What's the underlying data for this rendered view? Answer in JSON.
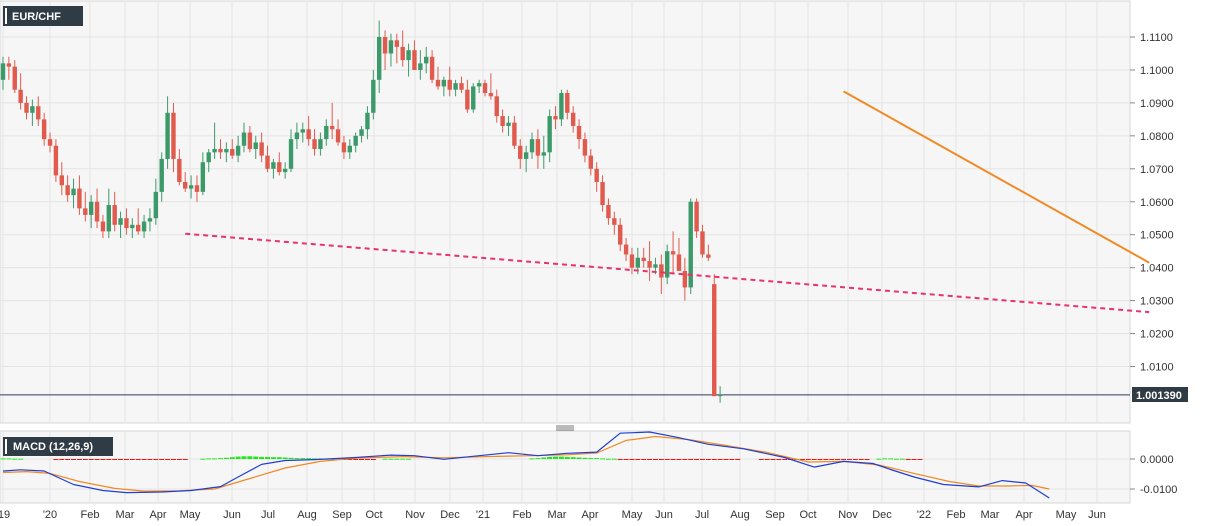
{
  "title": "EUR/CHF",
  "indicator_label": "MACD (12,26,9)",
  "last_price_label": "1.001390",
  "colors": {
    "up": "#3c9a6a",
    "down": "#e05a4e",
    "hist_pos": "#22e61e",
    "hist_neg": "#f01414",
    "macd_line": "#1f3fd4",
    "signal_line": "#f08a24",
    "trendline_solid": "#f08a24",
    "trendline_dashed": "#e8336b",
    "label_bg": "#2f3b45"
  },
  "chart_data": [
    {
      "type": "candlestick",
      "title": "EUR/CHF",
      "timeframe": "weekly",
      "x_ticks": [
        "'19",
        "'20",
        "Feb",
        "Mar",
        "Apr",
        "May",
        "Jun",
        "Jul",
        "Aug",
        "Sep",
        "Oct",
        "Nov",
        "Dec",
        "'21",
        "Feb",
        "Mar",
        "Apr",
        "May",
        "Jun",
        "Jul",
        "Aug",
        "Sep",
        "Oct",
        "Nov",
        "Dec",
        "'22",
        "Feb",
        "Mar",
        "Apr",
        "May",
        "Jun"
      ],
      "y_ticks": [
        "1.1100",
        "1.1000",
        "1.0900",
        "1.0800",
        "1.0700",
        "1.0600",
        "1.0500",
        "1.0400",
        "1.0300",
        "1.0200",
        "1.0100"
      ],
      "ylim": [
        0.9975,
        1.1215
      ],
      "last_price": 1.00139,
      "candles": [
        [
          1.097,
          1.104,
          1.094,
          1.102
        ],
        [
          1.102,
          1.104,
          1.097,
          1.101
        ],
        [
          1.101,
          1.103,
          1.093,
          1.094
        ],
        [
          1.094,
          1.099,
          1.088,
          1.09
        ],
        [
          1.09,
          1.092,
          1.085,
          1.087
        ],
        [
          1.087,
          1.091,
          1.083,
          1.089
        ],
        [
          1.089,
          1.092,
          1.083,
          1.085
        ],
        [
          1.085,
          1.087,
          1.077,
          1.079
        ],
        [
          1.079,
          1.081,
          1.075,
          1.077
        ],
        [
          1.077,
          1.079,
          1.066,
          1.068
        ],
        [
          1.068,
          1.072,
          1.062,
          1.065
        ],
        [
          1.065,
          1.068,
          1.06,
          1.062
        ],
        [
          1.062,
          1.067,
          1.058,
          1.064
        ],
        [
          1.064,
          1.068,
          1.056,
          1.058
        ],
        [
          1.058,
          1.063,
          1.054,
          1.056
        ],
        [
          1.056,
          1.062,
          1.052,
          1.06
        ],
        [
          1.06,
          1.064,
          1.052,
          1.054
        ],
        [
          1.054,
          1.056,
          1.049,
          1.051
        ],
        [
          1.051,
          1.064,
          1.049,
          1.059
        ],
        [
          1.059,
          1.063,
          1.051,
          1.053
        ],
        [
          1.053,
          1.057,
          1.049,
          1.055
        ],
        [
          1.055,
          1.058,
          1.05,
          1.052
        ],
        [
          1.052,
          1.055,
          1.049,
          1.053
        ],
        [
          1.053,
          1.058,
          1.05,
          1.051
        ],
        [
          1.051,
          1.056,
          1.049,
          1.054
        ],
        [
          1.054,
          1.058,
          1.051,
          1.055
        ],
        [
          1.055,
          1.067,
          1.053,
          1.063
        ],
        [
          1.063,
          1.075,
          1.06,
          1.073
        ],
        [
          1.073,
          1.092,
          1.07,
          1.087
        ],
        [
          1.087,
          1.09,
          1.069,
          1.073
        ],
        [
          1.073,
          1.076,
          1.065,
          1.066
        ],
        [
          1.066,
          1.069,
          1.063,
          1.064
        ],
        [
          1.064,
          1.068,
          1.061,
          1.065
        ],
        [
          1.065,
          1.068,
          1.06,
          1.063
        ],
        [
          1.063,
          1.075,
          1.062,
          1.072
        ],
        [
          1.072,
          1.076,
          1.069,
          1.075
        ],
        [
          1.075,
          1.084,
          1.073,
          1.076
        ],
        [
          1.076,
          1.079,
          1.073,
          1.075
        ],
        [
          1.075,
          1.078,
          1.072,
          1.076
        ],
        [
          1.076,
          1.079,
          1.073,
          1.074
        ],
        [
          1.074,
          1.08,
          1.072,
          1.077
        ],
        [
          1.077,
          1.084,
          1.075,
          1.081
        ],
        [
          1.081,
          1.083,
          1.075,
          1.076
        ],
        [
          1.076,
          1.08,
          1.073,
          1.078
        ],
        [
          1.078,
          1.081,
          1.072,
          1.074
        ],
        [
          1.074,
          1.077,
          1.069,
          1.07
        ],
        [
          1.07,
          1.073,
          1.067,
          1.072
        ],
        [
          1.072,
          1.075,
          1.068,
          1.069
        ],
        [
          1.069,
          1.072,
          1.067,
          1.07
        ],
        [
          1.07,
          1.082,
          1.069,
          1.079
        ],
        [
          1.079,
          1.084,
          1.076,
          1.081
        ],
        [
          1.081,
          1.084,
          1.078,
          1.082
        ],
        [
          1.082,
          1.086,
          1.077,
          1.079
        ],
        [
          1.079,
          1.082,
          1.074,
          1.076
        ],
        [
          1.076,
          1.081,
          1.074,
          1.079
        ],
        [
          1.079,
          1.085,
          1.077,
          1.083
        ],
        [
          1.083,
          1.09,
          1.079,
          1.082
        ],
        [
          1.082,
          1.085,
          1.077,
          1.078
        ],
        [
          1.078,
          1.08,
          1.073,
          1.075
        ],
        [
          1.075,
          1.079,
          1.073,
          1.077
        ],
        [
          1.077,
          1.081,
          1.075,
          1.08
        ],
        [
          1.08,
          1.083,
          1.078,
          1.082
        ],
        [
          1.082,
          1.089,
          1.079,
          1.087
        ],
        [
          1.087,
          1.1,
          1.085,
          1.097
        ],
        [
          1.097,
          1.115,
          1.093,
          1.11
        ],
        [
          1.11,
          1.112,
          1.1,
          1.105
        ],
        [
          1.105,
          1.111,
          1.101,
          1.109
        ],
        [
          1.109,
          1.111,
          1.102,
          1.107
        ],
        [
          1.107,
          1.112,
          1.101,
          1.103
        ],
        [
          1.103,
          1.108,
          1.098,
          1.106
        ],
        [
          1.106,
          1.109,
          1.1,
          1.1
        ],
        [
          1.1,
          1.106,
          1.097,
          1.102
        ],
        [
          1.102,
          1.107,
          1.099,
          1.104
        ],
        [
          1.104,
          1.106,
          1.096,
          1.097
        ],
        [
          1.097,
          1.101,
          1.094,
          1.095
        ],
        [
          1.095,
          1.098,
          1.092,
          1.097
        ],
        [
          1.097,
          1.101,
          1.092,
          1.094
        ],
        [
          1.094,
          1.097,
          1.092,
          1.096
        ],
        [
          1.096,
          1.098,
          1.093,
          1.094
        ],
        [
          1.094,
          1.097,
          1.087,
          1.088
        ],
        [
          1.088,
          1.096,
          1.087,
          1.095
        ],
        [
          1.095,
          1.097,
          1.093,
          1.096
        ],
        [
          1.096,
          1.097,
          1.092,
          1.093
        ],
        [
          1.093,
          1.099,
          1.091,
          1.092
        ],
        [
          1.092,
          1.094,
          1.084,
          1.086
        ],
        [
          1.086,
          1.088,
          1.081,
          1.083
        ],
        [
          1.083,
          1.086,
          1.08,
          1.084
        ],
        [
          1.084,
          1.086,
          1.076,
          1.077
        ],
        [
          1.077,
          1.079,
          1.07,
          1.073
        ],
        [
          1.073,
          1.077,
          1.069,
          1.075
        ],
        [
          1.075,
          1.081,
          1.073,
          1.079
        ],
        [
          1.079,
          1.082,
          1.07,
          1.074
        ],
        [
          1.074,
          1.08,
          1.07,
          1.075
        ],
        [
          1.075,
          1.088,
          1.072,
          1.086
        ],
        [
          1.086,
          1.089,
          1.082,
          1.085
        ],
        [
          1.085,
          1.094,
          1.083,
          1.093
        ],
        [
          1.093,
          1.094,
          1.085,
          1.087
        ],
        [
          1.087,
          1.089,
          1.081,
          1.083
        ],
        [
          1.083,
          1.085,
          1.076,
          1.079
        ],
        [
          1.079,
          1.081,
          1.072,
          1.074
        ],
        [
          1.074,
          1.076,
          1.068,
          1.07
        ],
        [
          1.07,
          1.072,
          1.063,
          1.066
        ],
        [
          1.066,
          1.068,
          1.057,
          1.059
        ],
        [
          1.059,
          1.061,
          1.053,
          1.055
        ],
        [
          1.055,
          1.057,
          1.05,
          1.053
        ],
        [
          1.053,
          1.055,
          1.045,
          1.047
        ],
        [
          1.047,
          1.049,
          1.042,
          1.044
        ],
        [
          1.044,
          1.046,
          1.038,
          1.04
        ],
        [
          1.04,
          1.046,
          1.038,
          1.043
        ],
        [
          1.043,
          1.046,
          1.04,
          1.042
        ],
        [
          1.042,
          1.048,
          1.036,
          1.04
        ],
        [
          1.04,
          1.043,
          1.038,
          1.041
        ],
        [
          1.041,
          1.044,
          1.032,
          1.037
        ],
        [
          1.037,
          1.047,
          1.035,
          1.045
        ],
        [
          1.045,
          1.051,
          1.038,
          1.044
        ],
        [
          1.044,
          1.049,
          1.04,
          1.039
        ],
        [
          1.039,
          1.043,
          1.03,
          1.034
        ],
        [
          1.034,
          1.061,
          1.032,
          1.06
        ],
        [
          1.06,
          1.061,
          1.049,
          1.051
        ],
        [
          1.051,
          1.053,
          1.043,
          1.044
        ],
        [
          1.044,
          1.047,
          1.042,
          1.043
        ],
        [
          1.035,
          1.038,
          1.001,
          1.001
        ],
        [
          1.001,
          1.004,
          0.999,
          1.0014
        ]
      ],
      "trendlines": [
        {
          "style": "solid",
          "from": [
            143,
            1.0935
          ],
          "to": [
            195,
            1.0415
          ]
        },
        {
          "style": "dashed",
          "from": [
            31,
            1.0503
          ],
          "to": [
            195,
            1.0265
          ]
        }
      ]
    },
    {
      "type": "macd",
      "title": "MACD (12,26,9)",
      "y_ticks": [
        "0.0000",
        "-0.0100"
      ],
      "ylim": [
        -0.0132,
        0.0092
      ],
      "macd_points": [
        [
          0,
          -0.004
        ],
        [
          3,
          -0.0036
        ],
        [
          7,
          -0.004
        ],
        [
          12,
          -0.0085
        ],
        [
          17,
          -0.0105
        ],
        [
          21,
          -0.0112
        ],
        [
          27,
          -0.011
        ],
        [
          32,
          -0.0105
        ],
        [
          37,
          -0.0092
        ],
        [
          40,
          -0.006
        ],
        [
          44,
          -0.0018
        ],
        [
          48,
          -0.0005
        ],
        [
          53,
          -0.0002
        ],
        [
          60,
          0.0005
        ],
        [
          66,
          0.0013
        ],
        [
          70,
          0.0011
        ],
        [
          75,
          -0.0001
        ],
        [
          81,
          0.0011
        ],
        [
          86,
          0.0021
        ],
        [
          91,
          0.0011
        ],
        [
          96,
          0.0019
        ],
        [
          101,
          0.0023
        ],
        [
          105,
          0.0086
        ],
        [
          110,
          0.009
        ],
        [
          115,
          0.0071
        ],
        [
          120,
          0.0049
        ],
        [
          126,
          0.0034
        ],
        [
          133,
          0.0005
        ],
        [
          138,
          -0.0027
        ],
        [
          143,
          -0.0008
        ],
        [
          148,
          -0.0015
        ],
        [
          151,
          -0.0035
        ],
        [
          155,
          -0.006
        ],
        [
          160,
          -0.0085
        ],
        [
          166,
          -0.0093
        ],
        [
          170,
          -0.0072
        ],
        [
          174,
          -0.008
        ],
        [
          178,
          -0.013
        ]
      ],
      "signal_points": [
        [
          0,
          -0.0045
        ],
        [
          4,
          -0.0042
        ],
        [
          8,
          -0.0048
        ],
        [
          13,
          -0.0075
        ],
        [
          19,
          -0.0098
        ],
        [
          24,
          -0.0107
        ],
        [
          30,
          -0.0106
        ],
        [
          36,
          -0.01
        ],
        [
          42,
          -0.0065
        ],
        [
          48,
          -0.003
        ],
        [
          54,
          -0.0008
        ],
        [
          60,
          0.0003
        ],
        [
          68,
          0.0008
        ],
        [
          75,
          0.0004
        ],
        [
          82,
          0.0008
        ],
        [
          90,
          0.0011
        ],
        [
          96,
          0.0014
        ],
        [
          101,
          0.002
        ],
        [
          106,
          0.0062
        ],
        [
          111,
          0.0075
        ],
        [
          117,
          0.0064
        ],
        [
          123,
          0.0045
        ],
        [
          130,
          0.0022
        ],
        [
          137,
          -0.001
        ],
        [
          143,
          -0.0008
        ],
        [
          149,
          -0.002
        ],
        [
          155,
          -0.0048
        ],
        [
          161,
          -0.0075
        ],
        [
          166,
          -0.009
        ],
        [
          171,
          -0.009
        ],
        [
          175,
          -0.0088
        ],
        [
          178,
          -0.01
        ]
      ],
      "histogram": [
        0.0002,
        0.0002,
        0.0001,
        0.0001,
        0,
        0,
        0,
        0,
        0,
        -0.0001,
        -0.0001,
        -0.0001,
        -0.0001,
        -0.0001,
        -0.0001,
        -0.0001,
        -0.0001,
        -0.0001,
        -0.0001,
        -0.0001,
        -0.0001,
        -0.0001,
        -0.0001,
        -0.0001,
        -0.0001,
        -0.0001,
        -0.0001,
        -0.0001,
        -0.0001,
        -0.0001,
        -0.0001,
        -0.0001,
        0,
        0,
        0.0001,
        0.0002,
        0.0002,
        0.0003,
        0.0004,
        0.0006,
        0.0008,
        0.0009,
        0.0009,
        0.0008,
        0.0007,
        0.0007,
        0.0006,
        0.0006,
        0.0005,
        0.0004,
        0.0003,
        0.0003,
        0.0003,
        0.0002,
        0.0002,
        0.0001,
        0.0001,
        0,
        -0.0001,
        -0.0001,
        -0.0002,
        -0.0002,
        -0.0001,
        -0.0001,
        0,
        0.0001,
        0.0001,
        0.0001,
        0.0001,
        0.0001,
        0,
        0,
        0,
        0,
        0,
        0,
        0,
        0,
        0,
        0,
        0,
        0,
        0,
        0,
        0,
        0,
        0,
        0,
        0,
        0,
        0.0002,
        0.0003,
        0.0005,
        0.0007,
        0.0008,
        0.0008,
        0.0007,
        0.0006,
        0.0005,
        0.0004,
        0.0003,
        0.0003,
        0.0002,
        0.0001,
        0.0001,
        -0.0001,
        -0.0002,
        -0.0002,
        -0.0003,
        -0.0003,
        -0.0003,
        -0.0003,
        -0.0003,
        -0.0003,
        -0.0003,
        -0.0003,
        -0.0003,
        -0.0003,
        -0.0003,
        -0.0003,
        -0.0002,
        -0.0002,
        -0.0002,
        -0.0002,
        -0.0001,
        -0.0001,
        0,
        0,
        0,
        -0.0001,
        -0.0001,
        -0.0001,
        -0.0001,
        -0.0002,
        -0.0002,
        -0.0002,
        -0.0003,
        -0.0003,
        -0.0003,
        -0.0003,
        -0.0003,
        -0.0003,
        -0.0003,
        -0.0003,
        -0.0003,
        -0.0002,
        -0.0002,
        -0.0001,
        0,
        0.0001,
        0.0002,
        0.0002,
        0.0001,
        0.0001,
        -0.0001,
        -0.0003,
        -0.0003
      ]
    }
  ]
}
